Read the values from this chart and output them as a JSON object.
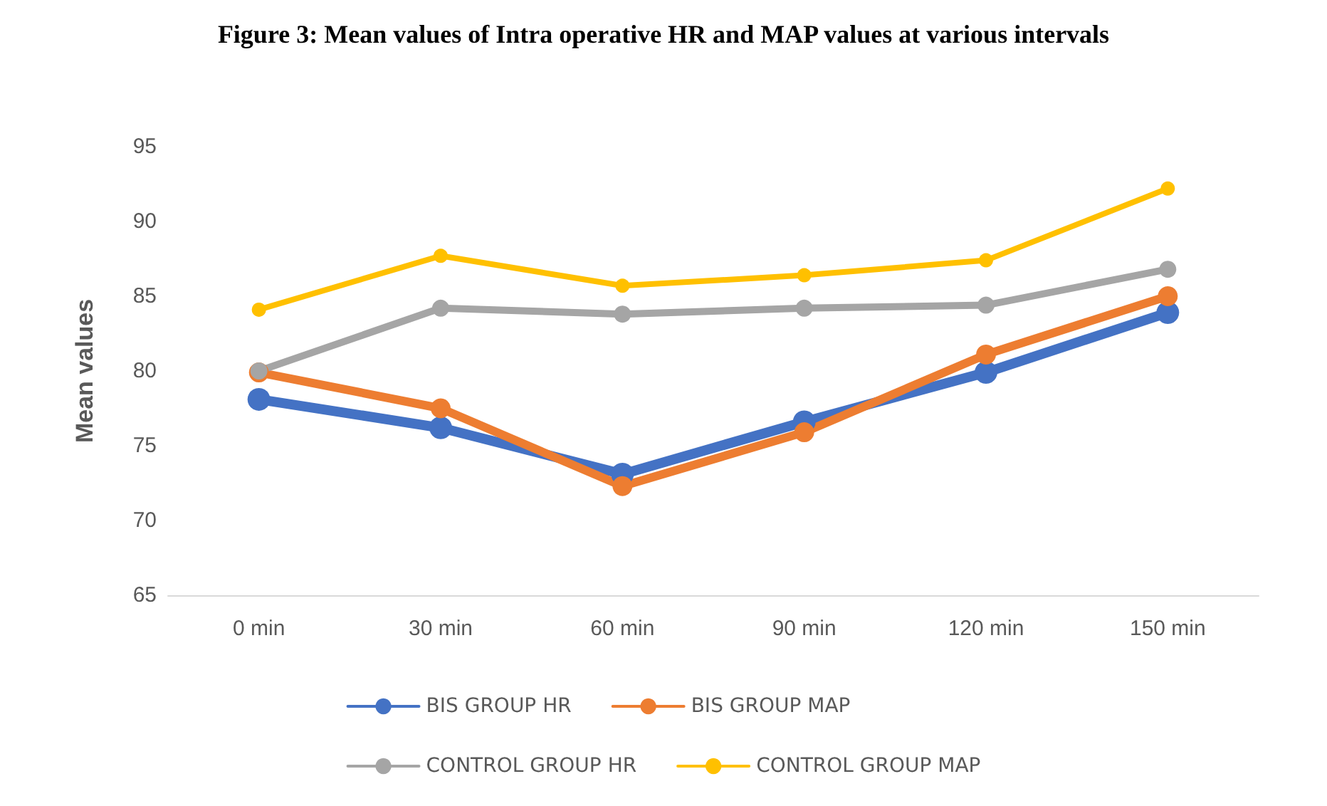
{
  "chart_data": {
    "type": "line",
    "title": "Figure 3: Mean values of Intra operative HR and MAP values at various intervals",
    "ylabel": "Mean values",
    "categories": [
      "0 min",
      "30 min",
      "60 min",
      "90 min",
      "120 min",
      "150 min"
    ],
    "series": [
      {
        "name": "BIS GROUP HR",
        "color": "#4472c4",
        "values": [
          78.1,
          76.2,
          73.1,
          76.6,
          79.9,
          83.9
        ]
      },
      {
        "name": "BIS GROUP MAP",
        "color": "#ed7d31",
        "values": [
          79.9,
          77.5,
          72.3,
          75.9,
          81.1,
          85.0
        ]
      },
      {
        "name": "CONTROL GROUP HR",
        "color": "#a5a5a5",
        "values": [
          80.0,
          84.2,
          83.8,
          84.2,
          84.4,
          86.8
        ]
      },
      {
        "name": "CONTROL GROUP MAP",
        "color": "#ffc000",
        "values": [
          84.1,
          87.7,
          85.7,
          86.4,
          87.4,
          92.2
        ]
      }
    ],
    "ylim": [
      65,
      95
    ],
    "yticks": [
      65,
      70,
      75,
      80,
      85,
      90,
      95
    ],
    "grid": false,
    "legend": "bottom",
    "marker": "circle",
    "line_style": "solid"
  }
}
